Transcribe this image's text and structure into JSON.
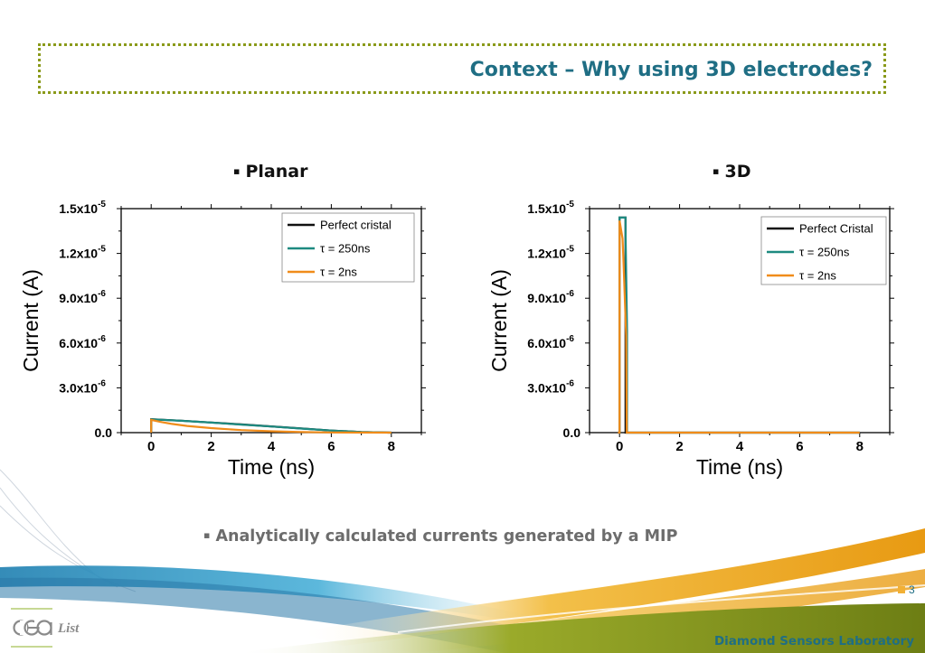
{
  "slide": {
    "title": "Context – Why using 3D electrodes?",
    "caption": "Analytically calculated currents generated by a MIP",
    "page_number": "3",
    "footer": "Diamond Sensors Laboratory",
    "logo_text": "cea List",
    "bullet": "▪"
  },
  "colors": {
    "title": "#1f6e84",
    "perfect": "#111111",
    "tau250": "#1d8a80",
    "tau2": "#f08c1a",
    "dotted_border": "#8a9a1a"
  },
  "chart_data": [
    {
      "type": "line",
      "title": "Planar",
      "xlabel": "Time (ns)",
      "ylabel": "Current (A)",
      "xlim": [
        -1,
        9
      ],
      "ylim": [
        0,
        1.5e-05
      ],
      "xticks": [
        "0",
        "2",
        "4",
        "6",
        "8"
      ],
      "yticks": [
        {
          "base": "0.0",
          "exp": ""
        },
        {
          "base": "3.0x10",
          "exp": "-6"
        },
        {
          "base": "6.0x10",
          "exp": "-6"
        },
        {
          "base": "9.0x10",
          "exp": "-6"
        },
        {
          "base": "1.2x10",
          "exp": "-5"
        },
        {
          "base": "1.5x10",
          "exp": "-5"
        }
      ],
      "legend_position": "top-right",
      "series": [
        {
          "name": "Perfect  cristal",
          "key": "perfect",
          "x": [
            0,
            0,
            1,
            2,
            3,
            4,
            5,
            6,
            7,
            8
          ],
          "y": [
            0,
            9e-07,
            8e-07,
            6.8e-07,
            5.5e-07,
            4.2e-07,
            2.8e-07,
            1.4e-07,
            4e-08,
            0
          ]
        },
        {
          "name": "τ = 250ns",
          "key": "tau250",
          "x": [
            0,
            0,
            1,
            2,
            3,
            4,
            5,
            6,
            7,
            8
          ],
          "y": [
            0,
            8.9e-07,
            7.9e-07,
            6.7e-07,
            5.4e-07,
            4.1e-07,
            2.7e-07,
            1.4e-07,
            4e-08,
            0
          ]
        },
        {
          "name": "τ = 2ns",
          "key": "tau2",
          "x": [
            0,
            0,
            0.3,
            0.7,
            1.2,
            2,
            3,
            4,
            5,
            6,
            8
          ],
          "y": [
            0,
            8.5e-07,
            7.2e-07,
            5.8e-07,
            4.5e-07,
            3e-07,
            1.7e-07,
            9e-08,
            4e-08,
            1.5e-08,
            0
          ]
        }
      ]
    },
    {
      "type": "line",
      "title": "3D",
      "xlabel": "Time (ns)",
      "ylabel": "Current (A)",
      "xlim": [
        -1,
        9
      ],
      "ylim": [
        0,
        1.5e-05
      ],
      "xticks": [
        "0",
        "2",
        "4",
        "6",
        "8"
      ],
      "yticks": [
        {
          "base": "0.0",
          "exp": ""
        },
        {
          "base": "3.0x10",
          "exp": "-6"
        },
        {
          "base": "6.0x10",
          "exp": "-6"
        },
        {
          "base": "9.0x10",
          "exp": "-6"
        },
        {
          "base": "1.2x10",
          "exp": "-5"
        },
        {
          "base": "1.5x10",
          "exp": "-5"
        }
      ],
      "legend_position": "top-right",
      "series": [
        {
          "name": "Perfect Cristal",
          "key": "perfect",
          "x": [
            -0.05,
            0,
            0,
            0.2,
            0.2,
            8
          ],
          "y": [
            0,
            0,
            1.44e-05,
            1.44e-05,
            0,
            0
          ]
        },
        {
          "name": "τ = 250ns",
          "key": "tau250",
          "x": [
            -0.05,
            0,
            0,
            0.2,
            0.2,
            0.25,
            0.25,
            8
          ],
          "y": [
            0,
            0,
            1.44e-05,
            1.44e-05,
            1.35e-05,
            6.8e-06,
            0,
            0
          ]
        },
        {
          "name": "τ = 2ns",
          "key": "tau2",
          "x": [
            -0.05,
            0,
            0,
            0.1,
            0.12,
            0.22,
            0.24,
            8
          ],
          "y": [
            0,
            0,
            1.42e-05,
            1.3e-05,
            1.2e-05,
            6.5e-06,
            0,
            0
          ]
        }
      ]
    }
  ]
}
